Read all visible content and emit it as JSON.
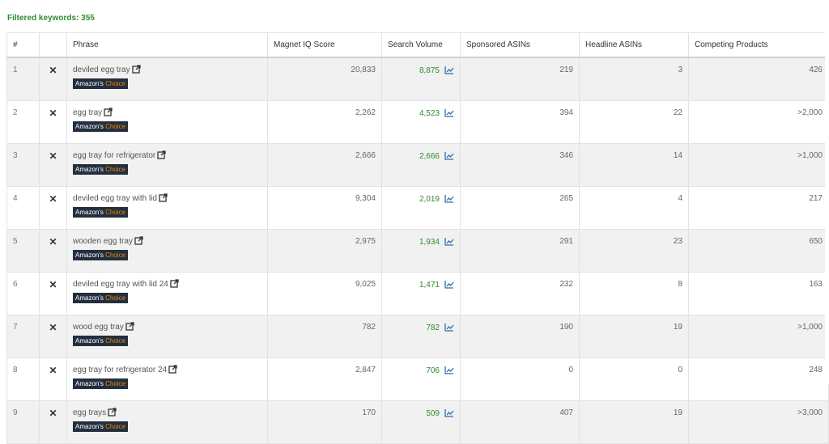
{
  "filter": {
    "label": "Filtered keywords: 355"
  },
  "columns": [
    "#",
    "",
    "Phrase",
    "Magnet IQ Score",
    "Search Volume",
    "Sponsored ASINs",
    "Headline ASINs",
    "Competing Products"
  ],
  "badge": {
    "amazon": "Amazon's",
    "choice": "Choice"
  },
  "icons": {
    "remove": "close-x-icon",
    "open": "external-link-icon",
    "trend": "trend-chart-icon"
  },
  "colors": {
    "green": "#2e8b2e",
    "badge_bg": "#232f3e",
    "badge_accent": "#f08804"
  },
  "rows": [
    {
      "num": "1",
      "phrase": "deviled egg tray",
      "iq": "20,833",
      "sv": "8,875",
      "sponsored": "219",
      "headline": "3",
      "competing": "426"
    },
    {
      "num": "2",
      "phrase": "egg tray",
      "iq": "2,262",
      "sv": "4,523",
      "sponsored": "394",
      "headline": "22",
      "competing": ">2,000"
    },
    {
      "num": "3",
      "phrase": "egg tray for refrigerator",
      "iq": "2,666",
      "sv": "2,666",
      "sponsored": "346",
      "headline": "14",
      "competing": ">1,000"
    },
    {
      "num": "4",
      "phrase": "deviled egg tray with lid",
      "iq": "9,304",
      "sv": "2,019",
      "sponsored": "265",
      "headline": "4",
      "competing": "217"
    },
    {
      "num": "5",
      "phrase": "wooden egg tray",
      "iq": "2,975",
      "sv": "1,934",
      "sponsored": "291",
      "headline": "23",
      "competing": "650"
    },
    {
      "num": "6",
      "phrase": "deviled egg tray with lid 24",
      "iq": "9,025",
      "sv": "1,471",
      "sponsored": "232",
      "headline": "8",
      "competing": "163"
    },
    {
      "num": "7",
      "phrase": "wood egg tray",
      "iq": "782",
      "sv": "782",
      "sponsored": "190",
      "headline": "19",
      "competing": ">1,000"
    },
    {
      "num": "8",
      "phrase": "egg tray for refrigerator 24",
      "iq": "2,847",
      "sv": "706",
      "sponsored": "0",
      "headline": "0",
      "competing": "248"
    },
    {
      "num": "9",
      "phrase": "egg trays",
      "iq": "170",
      "sv": "509",
      "sponsored": "407",
      "headline": "19",
      "competing": ">3,000"
    }
  ]
}
